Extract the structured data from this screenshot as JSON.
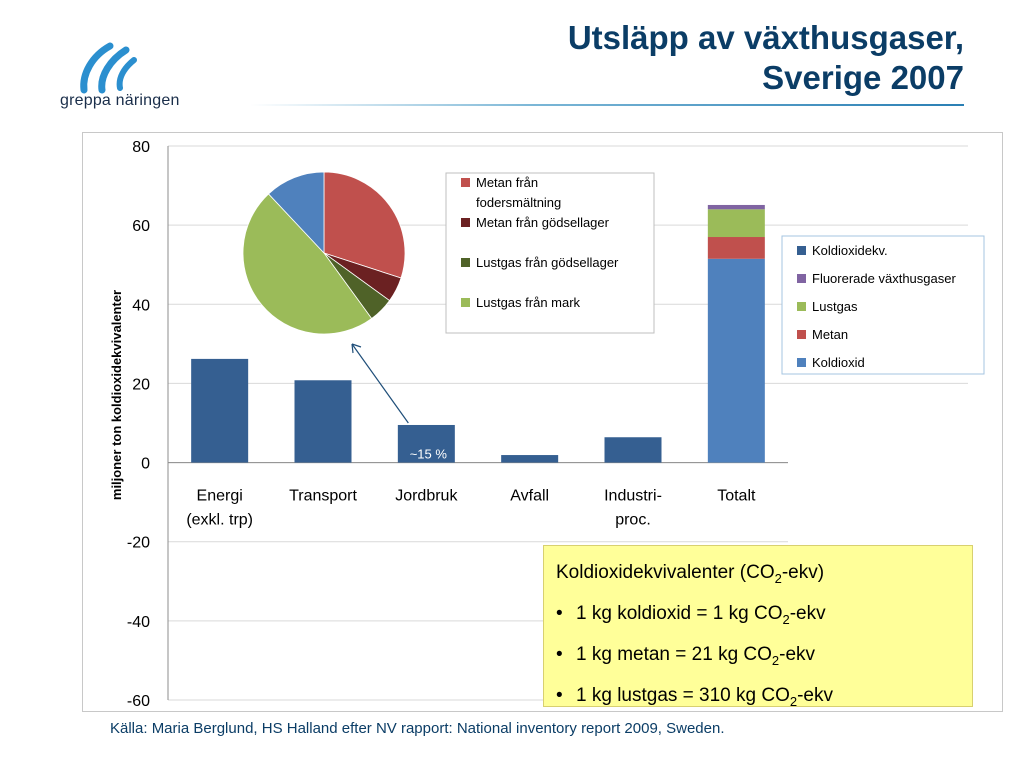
{
  "brand": {
    "logo_text": "greppa näringen"
  },
  "title": {
    "line1": "Utsläpp av växthusgaser,",
    "line2": "Sverige 2007"
  },
  "source": "Källa: Maria Berglund, HS Halland efter NV rapport: National inventory report 2009, Sweden.",
  "info_box": {
    "heading": {
      "pre": "Koldioxidekvivalenter (CO",
      "sub": "2",
      "post": "-ekv)"
    },
    "items": [
      {
        "pre": "1 kg koldioxid = 1 kg CO",
        "sub": "2",
        "post": "-ekv"
      },
      {
        "pre": "1 kg metan = 21 kg CO",
        "sub": "2",
        "post": "-ekv"
      },
      {
        "pre": "1 kg lustgas = 310 kg CO",
        "sub": "2",
        "post": "-ekv"
      }
    ]
  },
  "chart_data": [
    {
      "type": "bar",
      "ylabel": "miljoner ton koldioxidekvivalenter",
      "ylim": [
        -60,
        80
      ],
      "yticks": [
        80,
        60,
        40,
        20,
        0,
        -20,
        -40,
        -60
      ],
      "grid": true,
      "categories": [
        {
          "line1": "Energi",
          "line2": "(exkl. trp)"
        },
        {
          "line1": "Transport",
          "line2": ""
        },
        {
          "line1": "Jordbruk",
          "line2": ""
        },
        {
          "line1": "Avfall",
          "line2": ""
        },
        {
          "line1": "Industri-",
          "line2": "proc."
        },
        {
          "line1": "Totalt",
          "line2": ""
        }
      ],
      "values": [
        26.2,
        20.8,
        9.5,
        1.9,
        6.4,
        null
      ],
      "bar_color": "#355f91",
      "stacked_total": [
        {
          "name": "Koldioxid",
          "value": 51.5,
          "color": "#4f81bd"
        },
        {
          "name": "Metan",
          "value": 5.5,
          "color": "#c0504d"
        },
        {
          "name": "Lustgas",
          "value": 7.0,
          "color": "#9bbb59"
        },
        {
          "name": "Fluorerade växthusgaser",
          "value": 1.1,
          "color": "#8064a2"
        }
      ],
      "legend": {
        "position": "right",
        "items": [
          {
            "label": "Koldioxidekv.",
            "color": "#355f91"
          },
          {
            "label": "Fluorerade växthusgaser",
            "color": "#8064a2"
          },
          {
            "label": "Lustgas",
            "color": "#9bbb59"
          },
          {
            "label": "Metan",
            "color": "#c0504d"
          },
          {
            "label": "Koldioxid",
            "color": "#4f81bd"
          }
        ]
      },
      "annotation": {
        "text": "~15 %",
        "category_index": 2
      }
    },
    {
      "type": "pie",
      "slices": [
        {
          "name": "Metan från fodersmältning",
          "value": 30,
          "color": "#c0504d"
        },
        {
          "name": "Metan från gödsellager",
          "value": 5,
          "color": "#6b2122"
        },
        {
          "name": "Lustgas från gödsellager",
          "value": 5,
          "color": "#4f6228"
        },
        {
          "name": "Lustgas från mark",
          "value": 48,
          "color": "#9bbb59"
        },
        {
          "name": "",
          "value": 12,
          "color": "#4f81bd"
        }
      ],
      "legend": {
        "position": "right",
        "items": [
          {
            "line1": "Metan från",
            "line2": "fodersmältning",
            "color": "#c0504d"
          },
          {
            "line1": "Metan från gödsellager",
            "line2": "",
            "color": "#6b2122"
          },
          {
            "line1": "Lustgas från gödsellager",
            "line2": "",
            "color": "#4f6228"
          },
          {
            "line1": "Lustgas från mark",
            "line2": "",
            "color": "#9bbb59"
          }
        ]
      }
    }
  ]
}
